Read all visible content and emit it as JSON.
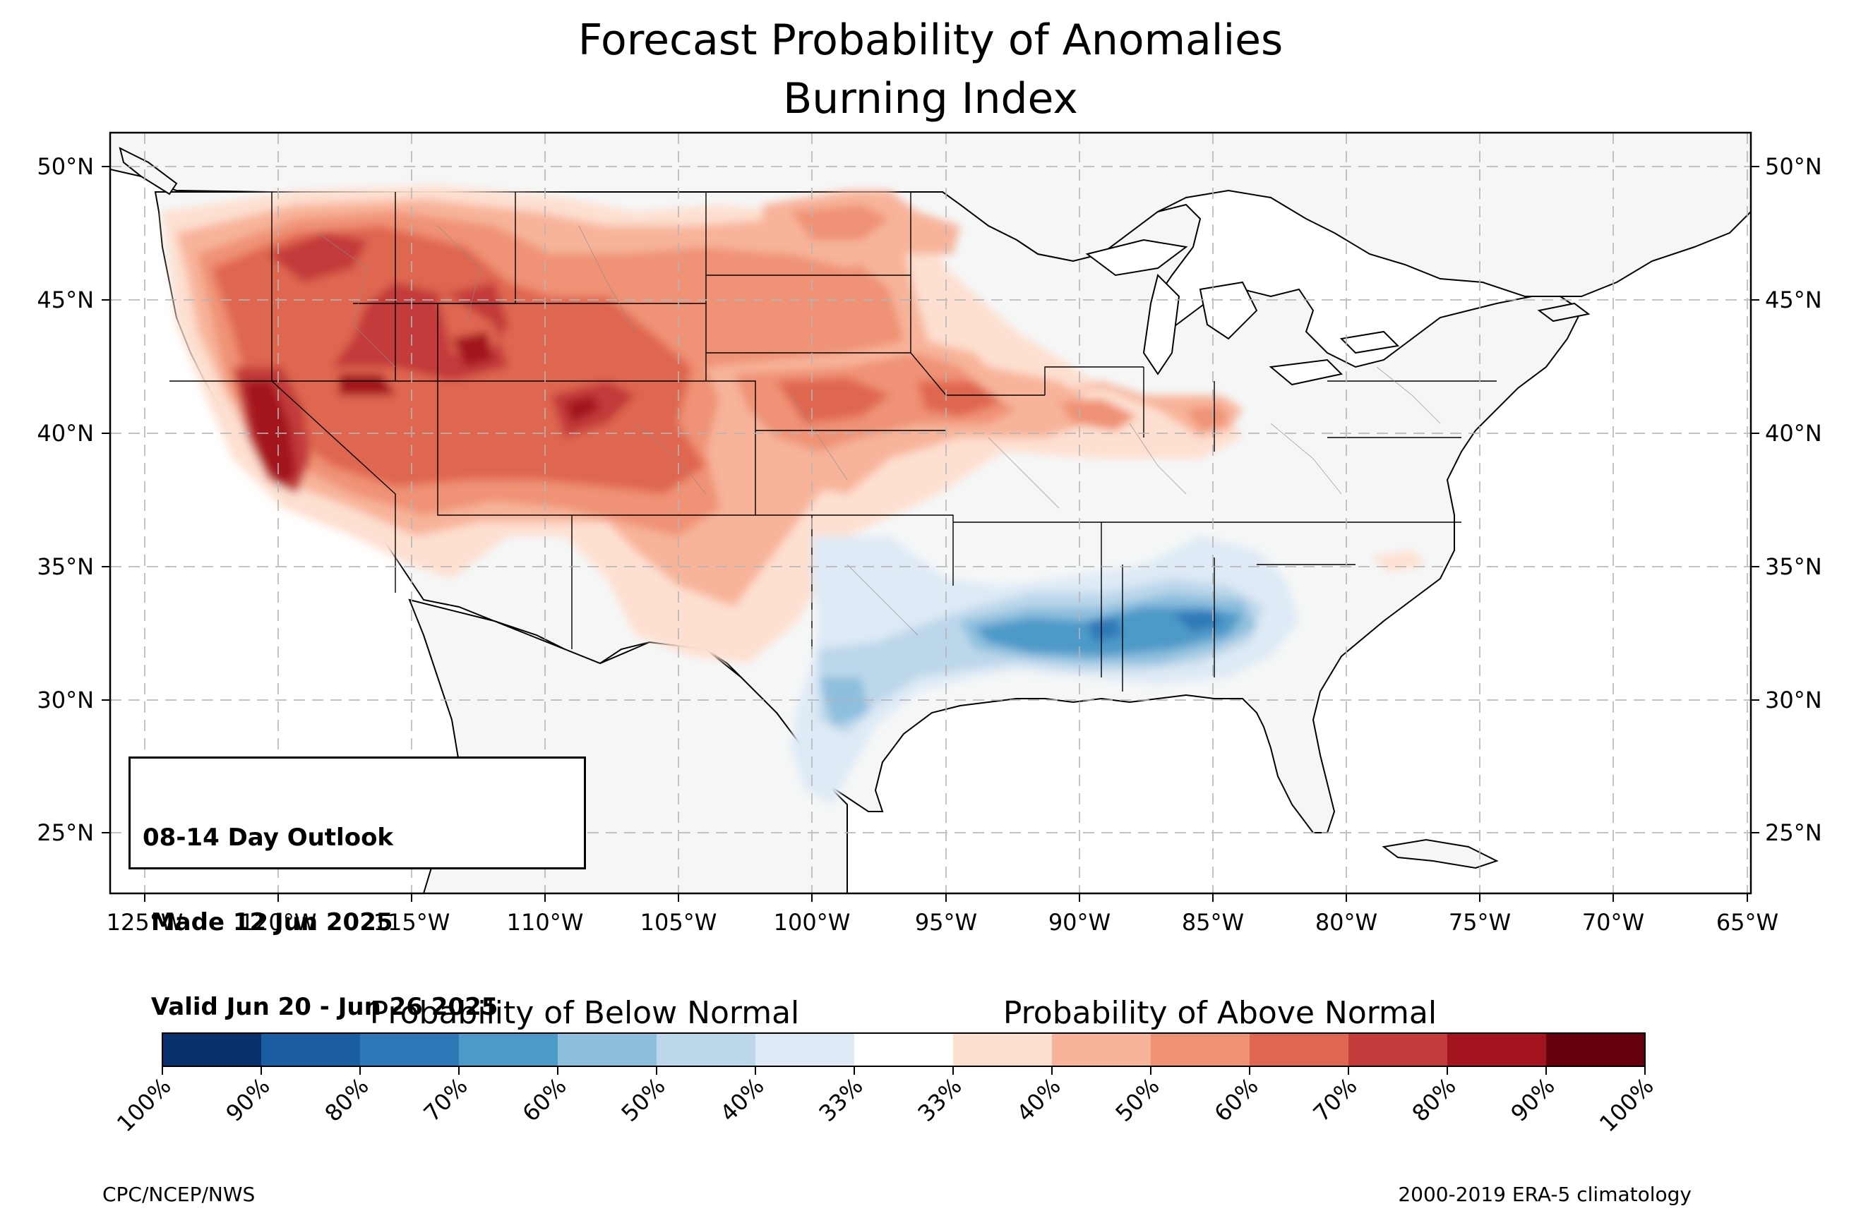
{
  "title": {
    "line1": "Forecast Probability of Anomalies",
    "line2": "Burning Index"
  },
  "map": {
    "lat_labels_left": [
      "50°N",
      "45°N",
      "40°N",
      "35°N",
      "30°N",
      "25°N"
    ],
    "lat_labels_right": [
      "50°N",
      "45°N",
      "40°N",
      "35°N",
      "30°N",
      "25°N"
    ],
    "lon_labels": [
      "125°W",
      "120°W",
      "115°W",
      "110°W",
      "105°W",
      "100°W",
      "95°W",
      "90°W",
      "85°W",
      "80°W",
      "75°W",
      "70°W",
      "65°W"
    ],
    "extent": {
      "lon": [
        -126.3,
        -64.9
      ],
      "lat": [
        22.8,
        51.2
      ]
    },
    "gridlines": "dashed gray",
    "land_color": "#f5f7f7"
  },
  "outlook_box": {
    "line1": "08-14 Day Outlook",
    "line2": " Made 12 Jun 2025",
    "line3": " Valid Jun 20 - Jun 26 2025"
  },
  "colorbar": {
    "below_heading": "Probability of Below Normal",
    "above_heading": "Probability of Above Normal",
    "tick_labels": [
      "100%",
      "90%",
      "80%",
      "70%",
      "60%",
      "50%",
      "40%",
      "33%",
      "33%",
      "40%",
      "50%",
      "60%",
      "70%",
      "80%",
      "90%",
      "100%"
    ],
    "colors": [
      "#08306b",
      "#1a5da0",
      "#2f78b7",
      "#4d9ac8",
      "#8ebfdd",
      "#bcd7ea",
      "#deeaf5",
      "#ffffff",
      "#fde0d0",
      "#f7b49a",
      "#ef9274",
      "#df6650",
      "#c33b3a",
      "#a3141f",
      "#67000d"
    ]
  },
  "anomaly_regions": [
    {
      "region": "California / Nevada (Great Basin)",
      "category": "above",
      "max_probability": "80%"
    },
    {
      "region": "Northern Rockies (Idaho, Montana, Wyoming)",
      "category": "above",
      "max_probability": "80%"
    },
    {
      "region": "Pacific Northwest",
      "category": "above",
      "max_probability": "70%"
    },
    {
      "region": "Central Rockies / Colorado / Utah",
      "category": "above",
      "max_probability": "80%"
    },
    {
      "region": "Central Plains (Kansas, Nebraska, Iowa)",
      "category": "above",
      "max_probability": "70%"
    },
    {
      "region": "Illinois / Indiana",
      "category": "above",
      "max_probability": "60%"
    },
    {
      "region": "Northern Plains (Dakotas)",
      "category": "above",
      "max_probability": "60%"
    },
    {
      "region": "Lower Mississippi Valley / Deep South",
      "category": "below",
      "max_probability": "70%"
    },
    {
      "region": "Texas / Louisiana Gulf Coast",
      "category": "below",
      "max_probability": "50%"
    }
  ],
  "footer": {
    "left": "CPC/NCEP/NWS",
    "right": "2000-2019 ERA-5 climatology"
  }
}
